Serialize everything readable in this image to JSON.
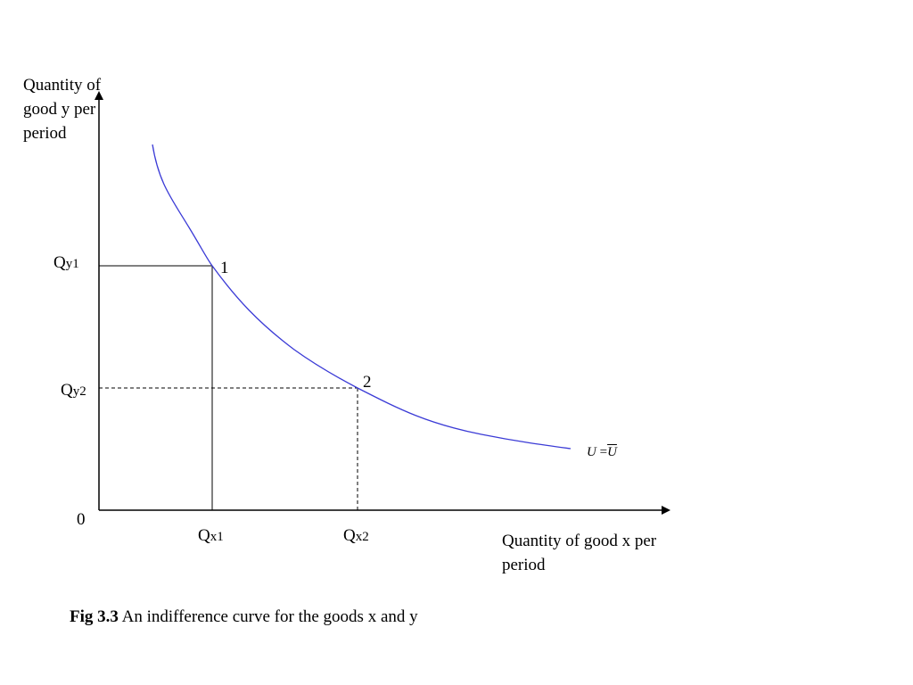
{
  "y_axis_label": "Quantity of good y per period",
  "x_axis_label": "Quantity of good x per period",
  "origin_label": "0",
  "points": [
    {
      "id": "1",
      "qy_main": "Q",
      "qy_sub": "y1",
      "qx_main": "Q",
      "qx_sub": "x1"
    },
    {
      "id": "2",
      "qy_main": "Q",
      "qy_sub": "y2",
      "qx_main": "Q",
      "qx_sub": "x2"
    }
  ],
  "curve_label": {
    "left": "U",
    "eq": "=",
    "right": "U"
  },
  "caption": {
    "bold": "Fig 3.3",
    "text": " An indifference curve for the goods x and y"
  },
  "colors": {
    "curve": "#3b3bd6",
    "axes": "#000000"
  }
}
